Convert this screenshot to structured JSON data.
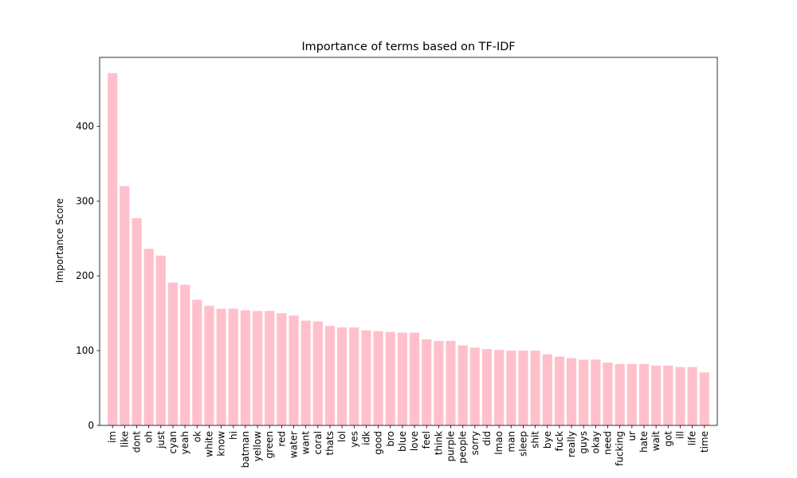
{
  "chart_data": {
    "type": "bar",
    "title": "Importance of terms based on TF-IDF",
    "xlabel": "",
    "ylabel": "Importance Score",
    "ylim": [
      0,
      492
    ],
    "yticks": [
      0,
      100,
      200,
      300,
      400
    ],
    "grid": false,
    "bar_color": "#ffc0cb",
    "categories": [
      "im",
      "like",
      "dont",
      "oh",
      "just",
      "cyan",
      "yeah",
      "ok",
      "white",
      "know",
      "hi",
      "batman",
      "yellow",
      "green",
      "red",
      "water",
      "want",
      "coral",
      "thats",
      "lol",
      "yes",
      "idk",
      "good",
      "bro",
      "blue",
      "love",
      "feel",
      "think",
      "purple",
      "people",
      "sorry",
      "did",
      "lmao",
      "man",
      "sleep",
      "shit",
      "bye",
      "fuck",
      "really",
      "guys",
      "okay",
      "need",
      "fucking",
      "ur",
      "hate",
      "wait",
      "got",
      "ill",
      "life",
      "time"
    ],
    "values": [
      471,
      320,
      277,
      236,
      227,
      191,
      188,
      168,
      160,
      156,
      156,
      154,
      153,
      153,
      150,
      147,
      140,
      139,
      133,
      131,
      131,
      127,
      126,
      125,
      124,
      124,
      115,
      113,
      113,
      107,
      104,
      102,
      101,
      100,
      100,
      100,
      95,
      92,
      90,
      88,
      88,
      84,
      82,
      82,
      82,
      80,
      80,
      78,
      78,
      71
    ]
  }
}
